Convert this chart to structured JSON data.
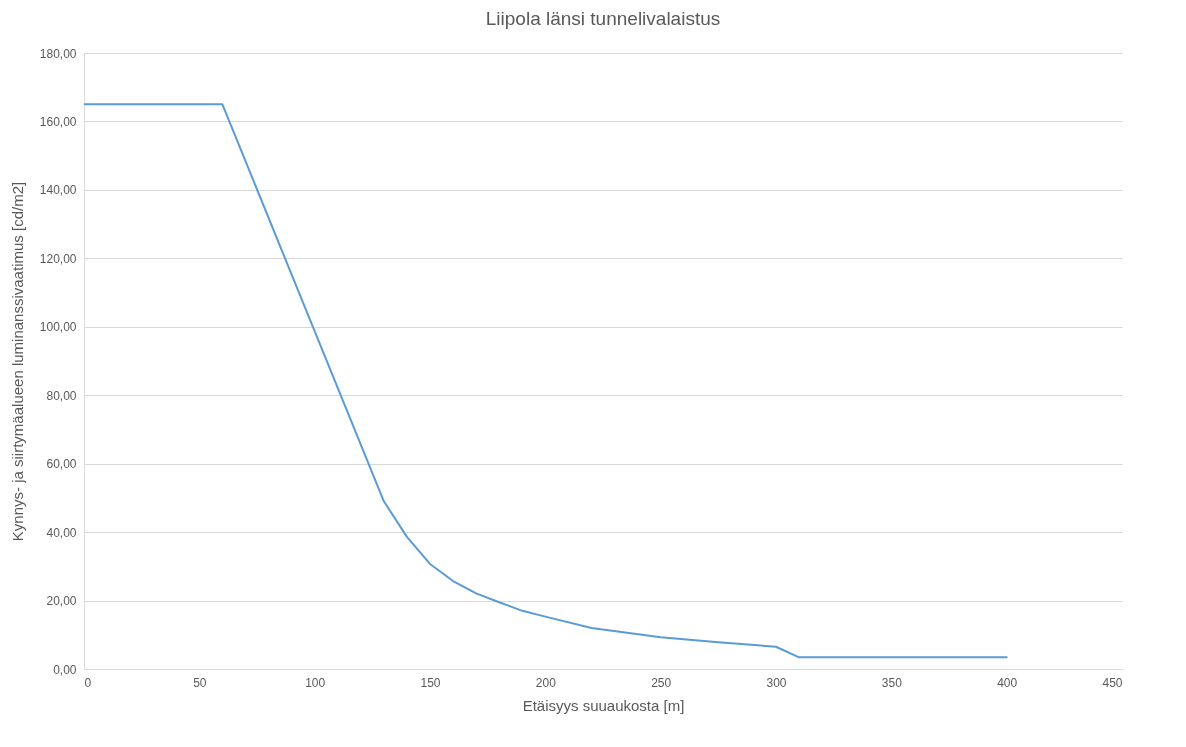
{
  "chart_data": {
    "type": "line",
    "title": "Liipola länsi tunnelivalaistus",
    "xlabel": "Etäisyys suuaukosta [m]",
    "ylabel": "Kynnys- ja siirtymäalueen luminanssivaatimus [cd/m2]",
    "x": [
      0,
      60,
      130,
      140,
      150,
      160,
      170,
      180,
      190,
      200,
      220,
      250,
      275,
      300,
      310,
      400
    ],
    "series": [
      {
        "color": "#5b9bd5",
        "values": [
          165,
          165,
          49,
          38.6,
          30.7,
          25.7,
          22.1,
          19.5,
          17.0,
          15.3,
          12.0,
          9.3,
          7.8,
          6.5,
          3.4,
          3.4
        ]
      }
    ],
    "xlim": [
      0,
      450
    ],
    "xticks": [
      0,
      50,
      100,
      150,
      200,
      250,
      300,
      350,
      400,
      450
    ],
    "ylim": [
      0,
      180
    ],
    "yticks": [
      {
        "value": 0,
        "label": "0,00"
      },
      {
        "value": 20,
        "label": "20,00"
      },
      {
        "value": 40,
        "label": "40,00"
      },
      {
        "value": 60,
        "label": "60,00"
      },
      {
        "value": 80,
        "label": "80,00"
      },
      {
        "value": 100,
        "label": "100,00"
      },
      {
        "value": 120,
        "label": "120,00"
      },
      {
        "value": 140,
        "label": "140,00"
      },
      {
        "value": 160,
        "label": "160,00"
      },
      {
        "value": 180,
        "label": "180,00"
      }
    ],
    "grid": "y",
    "marker": "none",
    "line_style": "solid"
  }
}
